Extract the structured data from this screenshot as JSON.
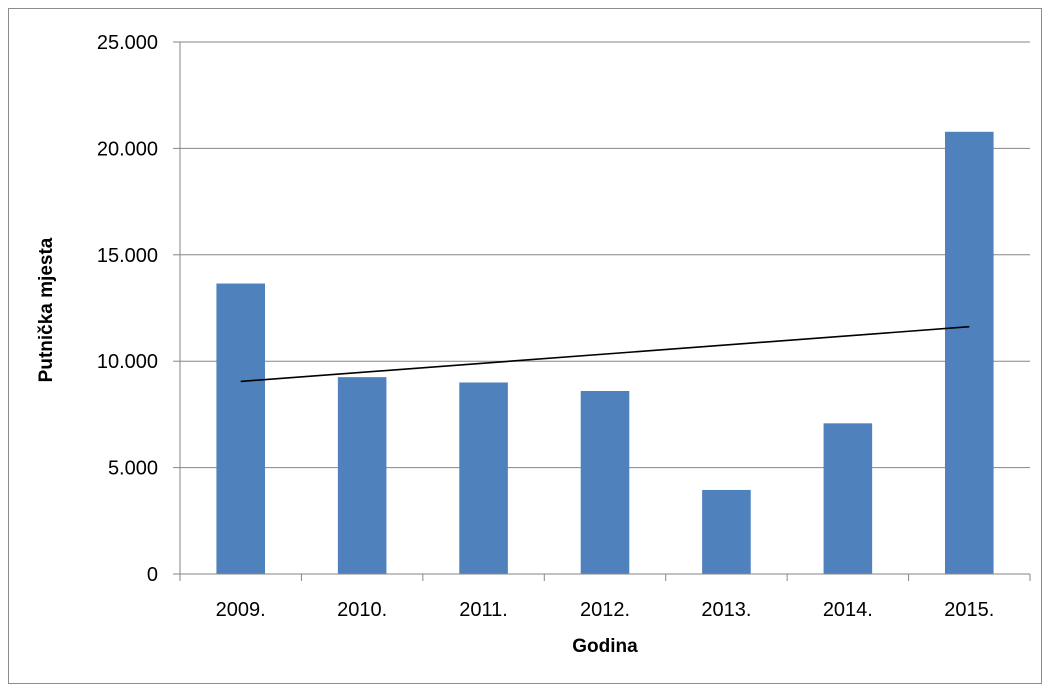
{
  "chart_data": {
    "type": "bar",
    "title": "",
    "xlabel": "Godina",
    "ylabel": "Putnička mjesta",
    "categories": [
      "2009.",
      "2010.",
      "2011.",
      "2012.",
      "2013.",
      "2014.",
      "2015."
    ],
    "values": [
      13650,
      9250,
      9000,
      8600,
      3950,
      7080,
      20780
    ],
    "ylim": [
      0,
      25000
    ],
    "yticks": [
      {
        "value": 0,
        "label": "0"
      },
      {
        "value": 5000,
        "label": "5.000"
      },
      {
        "value": 10000,
        "label": "10.000"
      },
      {
        "value": 15000,
        "label": "15.000"
      },
      {
        "value": 20000,
        "label": "20.000"
      },
      {
        "value": 25000,
        "label": "25.000"
      }
    ],
    "trendline": {
      "type": "linear",
      "start": 9050,
      "end": 11620
    },
    "grid": true,
    "legend": "none",
    "colors": {
      "bar": "#4f81bd",
      "trendline": "#000000",
      "grid": "#868686"
    }
  }
}
